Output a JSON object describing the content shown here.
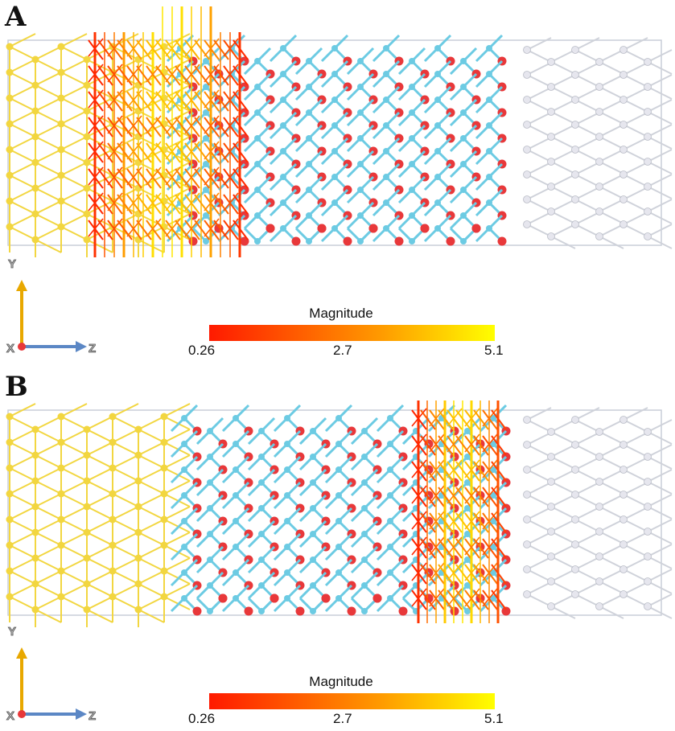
{
  "panels": [
    {
      "label": "A",
      "axes": {
        "y": "Y",
        "x": "X",
        "z": "Z"
      },
      "colorbar": {
        "title": "Magnitude",
        "min": "0.26",
        "mid": "2.7",
        "max": "5.1"
      },
      "highlight_region": "left-interface"
    },
    {
      "label": "B",
      "axes": {
        "y": "Y",
        "x": "X",
        "z": "Z"
      },
      "colorbar": {
        "title": "Magnitude",
        "min": "0.26",
        "mid": "2.7",
        "max": "5.1"
      },
      "highlight_region": "right-interface"
    }
  ],
  "colors": {
    "metal_left": "#f2d640",
    "oxide_blue": "#6ccbe3",
    "oxide_red": "#e8383a",
    "metal_right": "#e6e6ee",
    "vector_low": "#ff1a00",
    "vector_high": "#ffff00",
    "axis_y": "#e8a800",
    "axis_z": "#5b87c5"
  }
}
